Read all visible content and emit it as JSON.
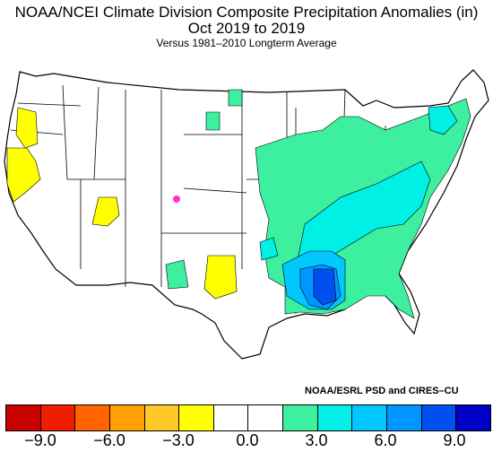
{
  "title_line1": "NOAA/NCEI Climate Division Composite Precipitation Anomalies (in)",
  "title_line2": "Oct 2019 to 2019",
  "subtitle": "Versus 1981–2010 Longterm Average",
  "credit": "NOAA/ESRL PSD and CIRES–CU",
  "legend": {
    "colors": [
      "#c80000",
      "#f01e00",
      "#ff6400",
      "#ffa000",
      "#ffc828",
      "#ffff00",
      "#ffffff",
      "#ffffff",
      "#3cf0a0",
      "#00f0e6",
      "#00c8ff",
      "#0096ff",
      "#0050f0",
      "#0000c8"
    ],
    "tick_labels": [
      "−9.0",
      "−6.0",
      "−3.0",
      "0.0",
      "3.0",
      "6.0",
      "9.0"
    ]
  },
  "map": {
    "marker_color": "#ff33cc",
    "border_color": "#000000"
  }
}
